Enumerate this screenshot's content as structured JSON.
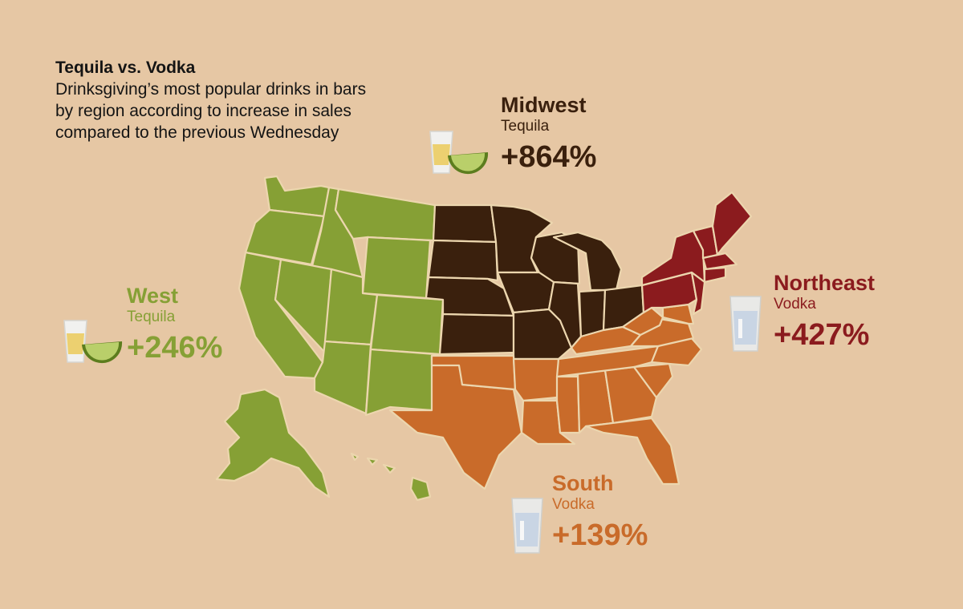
{
  "header": {
    "title": "Tequila vs. Vodka",
    "subtitle": "Drinksgiving’s most popular drinks in bars\nby region according to increase in sales\ncompared to the previous Wednesday"
  },
  "colors": {
    "background": "#e6c7a4",
    "west": "#86a035",
    "midwest": "#3a200d",
    "south": "#c96b2a",
    "northeast": "#8b1b1e",
    "border": "#ecd6ae"
  },
  "regions": {
    "west": {
      "name": "West",
      "drink": "Tequila",
      "increase": "+246%",
      "icon": "tequila-lime-icon"
    },
    "midwest": {
      "name": "Midwest",
      "drink": "Tequila",
      "increase": "+864%",
      "icon": "tequila-lime-icon"
    },
    "northeast": {
      "name": "Northeast",
      "drink": "Vodka",
      "increase": "+427%",
      "icon": "vodka-shot-icon"
    },
    "south": {
      "name": "South",
      "drink": "Vodka",
      "increase": "+139%",
      "icon": "vodka-shot-icon"
    }
  }
}
